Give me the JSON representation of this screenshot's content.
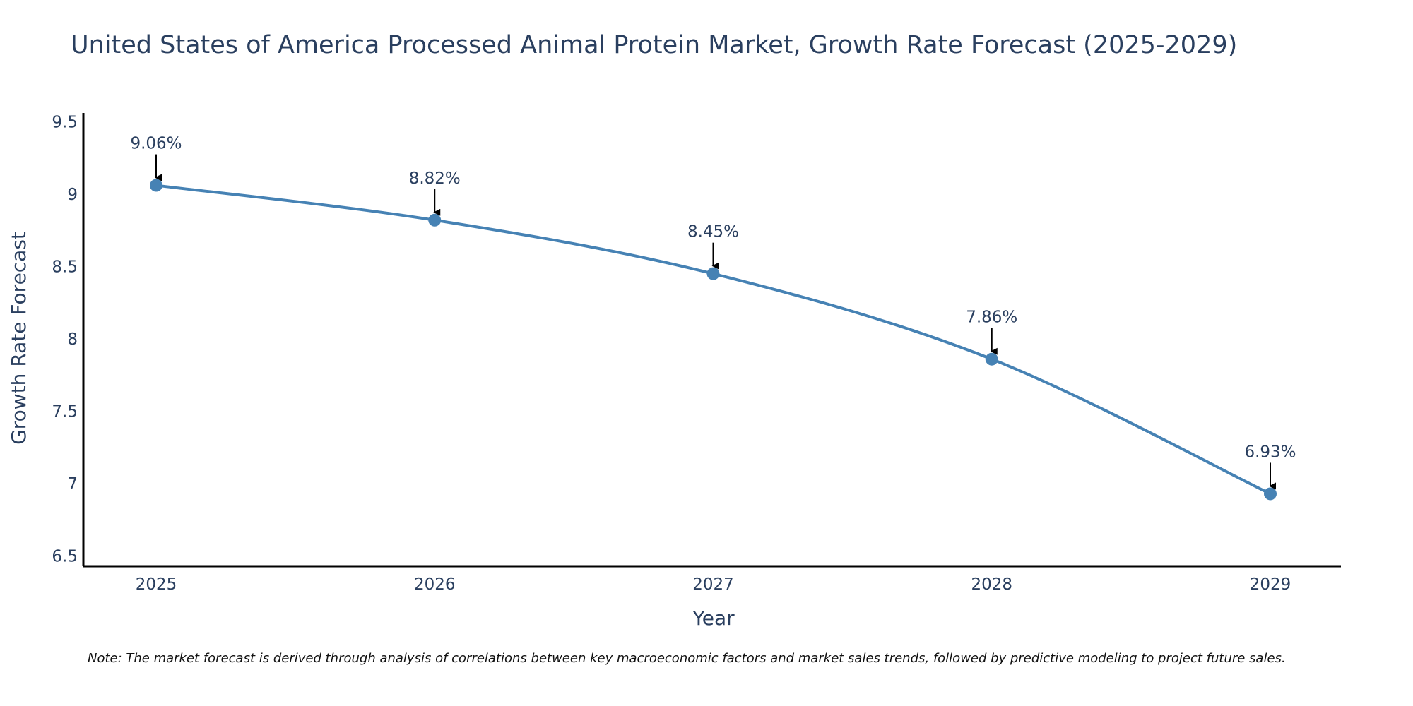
{
  "chart_data": {
    "type": "line",
    "title": "United States of America Processed Animal Protein Market, Growth Rate Forecast (2025-2029)",
    "xlabel": "Year",
    "ylabel": "Growth Rate Forecast",
    "categories": [
      "2025",
      "2026",
      "2027",
      "2028",
      "2029"
    ],
    "values": [
      9.06,
      8.82,
      8.45,
      7.86,
      6.93
    ],
    "data_labels": [
      "9.06%",
      "8.82%",
      "8.45%",
      "7.86%",
      "6.93%"
    ],
    "ylim": [
      6.43,
      9.56
    ],
    "yticks": [
      6.5,
      7,
      7.5,
      8,
      8.5,
      9,
      9.5
    ],
    "ytick_labels": [
      "6.5",
      "7",
      "7.5",
      "8",
      "8.5",
      "9",
      "9.5"
    ],
    "grid": false,
    "line_color": "#4682b4",
    "annotation_color": "#000000",
    "note": "Note: The market forecast is derived through analysis of correlations between key macroeconomic factors and market sales trends, followed by predictive modeling to project future sales."
  }
}
